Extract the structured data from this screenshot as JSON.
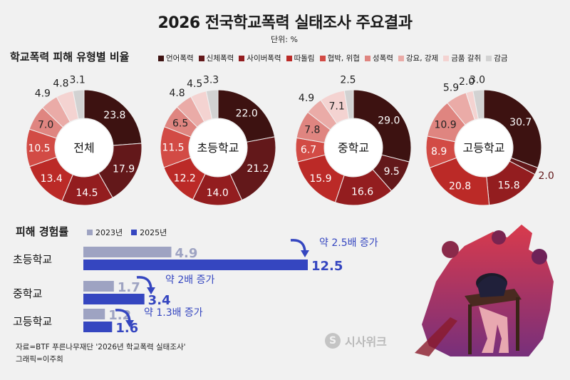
{
  "title": "2026 전국학교폭력 실태조사 주요결과",
  "unit": "단위: %",
  "section1_title": "학교폭력 피해 유형별 비율",
  "section2_title": "피해 경험률",
  "colors": {
    "type_colors": [
      "#3d1211",
      "#63181a",
      "#931d1f",
      "#bb2a27",
      "#d24b45",
      "#df8580",
      "#eaaba7",
      "#f4d3d1",
      "#d2d2d2"
    ],
    "bar_2023": "#9ea3c2",
    "bar_2025": "#3546c0"
  },
  "chart_data": [
    {
      "type": "pie",
      "categories": [
        "언어폭력",
        "신체폭력",
        "사이버폭력",
        "따돌림",
        "협박, 위협",
        "성폭력",
        "강요, 강제",
        "금품 갈취",
        "감금"
      ],
      "donuts": [
        {
          "name": "전체",
          "values": [
            23.8,
            17.9,
            14.5,
            13.4,
            10.5,
            7.0,
            4.9,
            4.8,
            3.1
          ]
        },
        {
          "name": "초등학교",
          "values": [
            22.0,
            21.2,
            14.0,
            12.2,
            11.5,
            6.5,
            4.8,
            4.5,
            3.3
          ]
        },
        {
          "name": "중학교",
          "values": [
            29.0,
            9.5,
            16.6,
            15.9,
            6.7,
            7.8,
            4.9,
            7.1,
            2.5
          ]
        },
        {
          "name": "고등학교",
          "values": [
            30.7,
            2.0,
            15.8,
            20.8,
            8.9,
            10.9,
            5.9,
            2.0,
            3.0
          ]
        }
      ]
    },
    {
      "type": "bar",
      "orientation": "horizontal",
      "categories": [
        "초등학교",
        "중학교",
        "고등학교"
      ],
      "series": [
        {
          "name": "2023년",
          "values": [
            4.9,
            1.7,
            1.2
          ]
        },
        {
          "name": "2025년",
          "values": [
            12.5,
            3.4,
            1.6
          ]
        }
      ],
      "annotations": [
        "약 2.5배 증가",
        "약 2배 증가",
        "약 1.3배 증가"
      ]
    }
  ],
  "source": "자료=BTF 푸른나무재단 '2026년 학교폭력 실태조사'",
  "credit": "그래픽=이주희",
  "watermark": "시사위크",
  "watermark_icon": "S-logo"
}
